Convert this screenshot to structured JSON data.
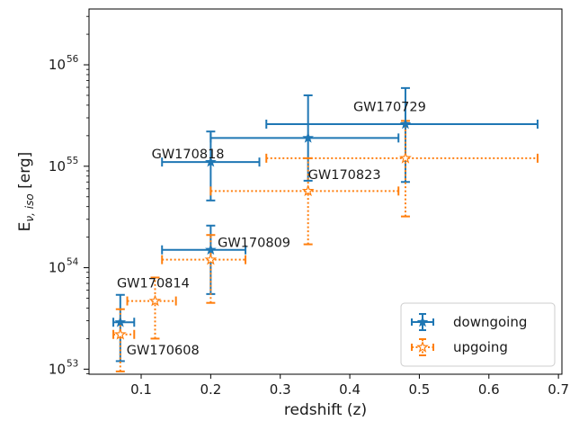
{
  "chart_data": {
    "type": "scatter",
    "xlabel": "redshift (z)",
    "ylabel_main": "E",
    "ylabel_sub": "ν, iso",
    "ylabel_unit": " [erg]",
    "xlim": [
      0.025,
      0.705
    ],
    "ylim_log10": [
      52.95,
      56.55
    ],
    "y_scale": "log",
    "grid": false,
    "legend_position": "bottom-right",
    "x_ticks": [
      {
        "value": 0.1,
        "label": "0.1"
      },
      {
        "value": 0.2,
        "label": "0.2"
      },
      {
        "value": 0.3,
        "label": "0.3"
      },
      {
        "value": 0.4,
        "label": "0.4"
      },
      {
        "value": 0.5,
        "label": "0.5"
      },
      {
        "value": 0.6,
        "label": "0.6"
      },
      {
        "value": 0.7,
        "label": "0.7"
      }
    ],
    "y_ticks": [
      {
        "exponent": 53,
        "base": "10",
        "exp_label": "53"
      },
      {
        "exponent": 54,
        "base": "10",
        "exp_label": "54"
      },
      {
        "exponent": 55,
        "base": "10",
        "exp_label": "55"
      },
      {
        "exponent": 56,
        "base": "10",
        "exp_label": "56"
      }
    ],
    "series": [
      {
        "name": "downgoing",
        "color": "#1f77b4",
        "marker": "star-filled",
        "line": "solid",
        "points": [
          {
            "x": 0.07,
            "xlo": 0.06,
            "xhi": 0.09,
            "y": 2.9e+53,
            "ylo": 1.2e+53,
            "yhi": 5.4e+53
          },
          {
            "x": 0.2,
            "xlo": 0.13,
            "xhi": 0.25,
            "y": 1.5e+54,
            "ylo": 5.5e+53,
            "yhi": 2.6e+54
          },
          {
            "x": 0.2,
            "xlo": 0.13,
            "xhi": 0.27,
            "y": 1.1e+55,
            "ylo": 4.6e+54,
            "yhi": 2.2e+55
          },
          {
            "x": 0.34,
            "xlo": 0.2,
            "xhi": 0.47,
            "y": 1.9e+55,
            "ylo": 7.2e+54,
            "yhi": 5e+55
          },
          {
            "x": 0.48,
            "xlo": 0.28,
            "xhi": 0.67,
            "y": 2.6e+55,
            "ylo": 7e+54,
            "yhi": 5.9e+55
          }
        ]
      },
      {
        "name": "upgoing",
        "color": "#ff7f0e",
        "marker": "star-open",
        "line": "dotted",
        "points": [
          {
            "x": 0.07,
            "xlo": 0.06,
            "xhi": 0.09,
            "y": 2.2e+53,
            "ylo": 9.5e+52,
            "yhi": 3.9e+53
          },
          {
            "x": 0.12,
            "xlo": 0.08,
            "xhi": 0.15,
            "y": 4.7e+53,
            "ylo": 2e+53,
            "yhi": 8e+53
          },
          {
            "x": 0.2,
            "xlo": 0.13,
            "xhi": 0.25,
            "y": 1.2e+54,
            "ylo": 4.5e+53,
            "yhi": 2.1e+54
          },
          {
            "x": 0.34,
            "xlo": 0.2,
            "xhi": 0.47,
            "y": 5.7e+54,
            "ylo": 1.7e+54,
            "yhi": 1.2e+55
          },
          {
            "x": 0.48,
            "xlo": 0.28,
            "xhi": 0.67,
            "y": 1.2e+55,
            "ylo": 3.2e+54,
            "yhi": 2.8e+55
          }
        ]
      }
    ],
    "annotations": [
      {
        "text": "GW170729",
        "x": 0.405,
        "y": 3.5e+55
      },
      {
        "text": "GW170818",
        "x": 0.115,
        "y": 1.2e+55
      },
      {
        "text": "GW170823",
        "x": 0.34,
        "y": 7.5e+54
      },
      {
        "text": "GW170809",
        "x": 0.21,
        "y": 1.6e+54
      },
      {
        "text": "GW170814",
        "x": 0.065,
        "y": 6.4e+53
      },
      {
        "text": "GW170608",
        "x": 0.079,
        "y": 1.4e+53
      }
    ]
  }
}
